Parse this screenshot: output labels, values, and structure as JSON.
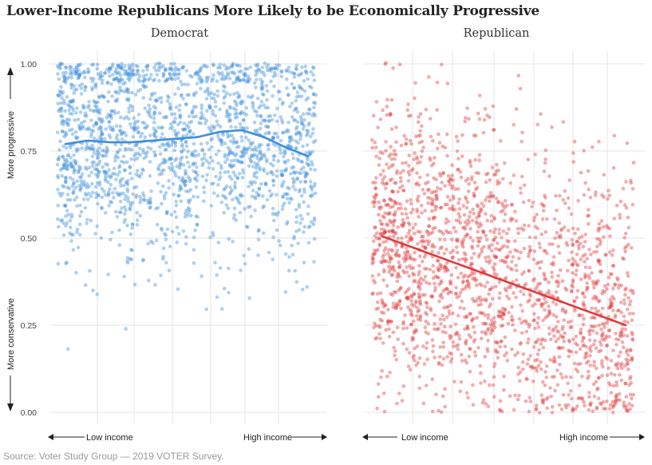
{
  "title": "Lower-Income Republicans More Likely to be Economically Progressive",
  "source": "Source: Voter Study Group — 2019 VOTER Survey.",
  "colors": {
    "democrat": "#3d8fdc",
    "republican": "#e0393b",
    "grid": "#e6e6e6",
    "text": "#333333"
  },
  "chart_data": [
    {
      "type": "scatter",
      "title": "Democrat",
      "ylabel_top": "More progressive",
      "ylabel_bottom": "More conservative",
      "xlabel_left": "Low income",
      "xlabel_right": "High income",
      "ylim": [
        0,
        1
      ],
      "yticks": [
        "0.00",
        "0.25",
        "0.50",
        "0.75",
        "1.00"
      ],
      "income_brackets": 12,
      "approx_points": 2000,
      "point_color": "#3d8fdc",
      "trend": {
        "x": [
          1,
          2,
          3,
          4,
          5,
          6,
          7,
          8,
          9,
          10,
          11,
          12
        ],
        "y": [
          0.77,
          0.78,
          0.775,
          0.775,
          0.78,
          0.785,
          0.79,
          0.805,
          0.81,
          0.79,
          0.76,
          0.735
        ]
      },
      "grid": true
    },
    {
      "type": "scatter",
      "title": "Republican",
      "xlabel_left": "Low income",
      "xlabel_right": "High income",
      "ylim": [
        0,
        1
      ],
      "income_brackets": 12,
      "approx_points": 2000,
      "point_color": "#e0393b",
      "trend": {
        "x": [
          1,
          12
        ],
        "y": [
          0.505,
          0.25
        ]
      },
      "grid": true
    }
  ]
}
